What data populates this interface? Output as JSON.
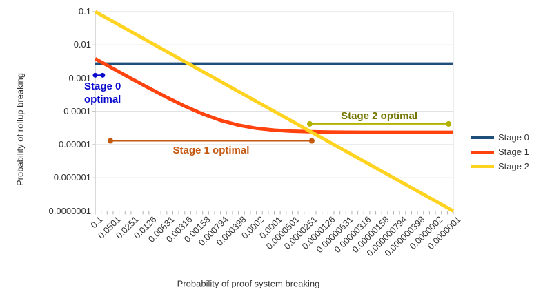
{
  "chart_data": {
    "type": "line",
    "title": "",
    "xlabel": "Probability of proof system breaking",
    "ylabel": "Probability of rollup breaking",
    "x_scale": "log-reversed",
    "y_scale": "log",
    "xlim": [
      0.1,
      1e-07
    ],
    "ylim": [
      0.1,
      1e-07
    ],
    "grid": "horizontal",
    "legend_position": "right",
    "x_tick_labels": [
      "0.1",
      "0.0501",
      "0.0251",
      "0.0126",
      "0.00631",
      "0.00316",
      "0.00158",
      "0.000794",
      "0.000398",
      "0.0002",
      "0.0001",
      "0.0000501",
      "0.0000251",
      "0.0000126",
      "0.00000631",
      "0.00000316",
      "0.00000158",
      "0.000000794",
      "0.000000398",
      "0.0000002",
      "0.0000001"
    ],
    "x_values": [
      0.1,
      0.0501,
      0.0251,
      0.0126,
      0.00631,
      0.00316,
      0.00158,
      0.000794,
      0.000398,
      0.0002,
      0.0001,
      5.01e-05,
      2.51e-05,
      1.26e-05,
      6.31e-06,
      3.16e-06,
      1.58e-06,
      7.94e-07,
      3.98e-07,
      2e-07,
      1e-07
    ],
    "y_tick_labels": [
      "0.1",
      "0.01",
      "0.001",
      "0.0001",
      "0.00001",
      "0.000001",
      "0.0000001"
    ],
    "series": [
      {
        "name": "Stage 0",
        "color": "#1f4e79",
        "width": 4,
        "values": [
          0.0027,
          0.0027,
          0.0027,
          0.0027,
          0.0027,
          0.0027,
          0.0027,
          0.0027,
          0.0027,
          0.0027,
          0.0027,
          0.0027,
          0.0027,
          0.0027,
          0.0027,
          0.0027,
          0.0027,
          0.0027,
          0.0027,
          0.0027,
          0.0027
        ]
      },
      {
        "name": "Stage 1",
        "color": "#ff420e",
        "width": 5,
        "values": [
          0.00383,
          0.00193,
          0.00098,
          0.000504,
          0.000264,
          0.000144,
          8.36e-05,
          5.36e-05,
          3.85e-05,
          3.1e-05,
          2.72e-05,
          2.53e-05,
          2.44e-05,
          2.39e-05,
          2.36e-05,
          2.35e-05,
          2.35e-05,
          2.34e-05,
          2.34e-05,
          2.34e-05,
          2.34e-05
        ]
      },
      {
        "name": "Stage 2",
        "color": "#ffd320",
        "width": 5,
        "values": [
          0.1,
          0.0501,
          0.0251,
          0.0126,
          0.00631,
          0.00316,
          0.00158,
          0.000794,
          0.000398,
          0.0002,
          0.0001,
          5.01e-05,
          2.51e-05,
          1.26e-05,
          6.31e-06,
          3.16e-06,
          1.58e-06,
          7.94e-07,
          3.98e-07,
          2e-07,
          1e-07
        ]
      }
    ],
    "annotations": [
      {
        "id": "stage0-optimal",
        "label": "Stage 0 optimal",
        "label_lines": [
          "Stage 0",
          "optimal"
        ],
        "color": "#0a0acd",
        "label_color": "#0a0acd",
        "x_from": 0.1,
        "x_to": 0.075,
        "y": 0.00122,
        "dot_radius": 3.5,
        "label_side": "below-left"
      },
      {
        "id": "stage1-optimal",
        "label": "Stage 1 optimal",
        "label_lines": [
          "Stage 1 optimal"
        ],
        "color": "#c45911",
        "label_color": "#c45911",
        "x_from": 0.0557,
        "x_to": 2.35e-05,
        "y": 1.3e-05,
        "dot_radius": 4,
        "label_side": "below"
      },
      {
        "id": "stage2-optimal",
        "label": "Stage 2 optimal",
        "label_lines": [
          "Stage 2 optimal"
        ],
        "color": "#b2b200",
        "label_color": "#757500",
        "x_from": 2.54e-05,
        "x_to": 1.2e-07,
        "y": 4.2e-05,
        "dot_radius": 4,
        "label_side": "above"
      }
    ],
    "style_colors": {
      "gridline": "#d9d9d9",
      "axis": "#b3b3b3",
      "tick_text": "#333333"
    }
  }
}
